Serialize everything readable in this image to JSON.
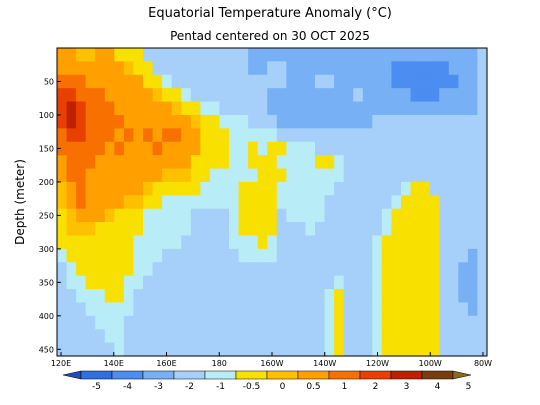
{
  "chart_data": {
    "type": "heatmap",
    "title": "Equatorial Temperature Anomaly (°C)",
    "subtitle": "Pentad centered on 30 OCT 2025",
    "ylabel": "Depth (meter)",
    "xlabel": "",
    "x_ticks": [
      "120E",
      "140E",
      "160E",
      "180",
      "160W",
      "140W",
      "120W",
      "100W",
      "80W"
    ],
    "y_ticks": [
      "50",
      "100",
      "150",
      "200",
      "250",
      "300",
      "350",
      "400",
      "450"
    ],
    "xlim": [
      120,
      280
    ],
    "ylim": [
      0,
      460
    ],
    "colorbar": {
      "levels": [
        "-5",
        "-4",
        "-3",
        "-2",
        "-1",
        "-0.5",
        "0",
        "0.5",
        "1",
        "2",
        "3",
        "4",
        "5"
      ],
      "colors": [
        "#1f4fbf",
        "#2f6fe0",
        "#4b8df0",
        "#78b0f5",
        "#a6d0fa",
        "#b8ecf6",
        "#f8e000",
        "#ffc000",
        "#ffa000",
        "#f87000",
        "#e84000",
        "#c02000",
        "#7a3d10",
        "#8b6a1a"
      ]
    },
    "grid": [
      [
        8,
        8,
        7,
        7,
        8,
        8,
        6,
        6,
        6,
        4,
        4,
        4,
        4,
        4,
        4,
        4,
        4,
        4,
        4,
        4,
        3,
        3,
        3,
        3,
        3,
        3,
        3,
        3,
        3,
        3,
        3,
        3,
        3,
        3,
        3,
        3,
        3,
        3,
        3,
        3,
        3,
        3,
        3,
        3,
        4
      ],
      [
        8,
        8,
        8,
        8,
        8,
        8,
        8,
        7,
        6,
        6,
        4,
        4,
        4,
        4,
        4,
        4,
        4,
        4,
        4,
        4,
        3,
        3,
        4,
        4,
        3,
        3,
        3,
        3,
        3,
        3,
        3,
        3,
        3,
        3,
        3,
        2,
        2,
        2,
        2,
        2,
        2,
        3,
        3,
        3,
        4
      ],
      [
        9,
        9,
        9,
        8,
        8,
        8,
        8,
        8,
        8,
        6,
        6,
        5,
        4,
        4,
        4,
        4,
        4,
        4,
        4,
        4,
        4,
        4,
        4,
        4,
        3,
        3,
        3,
        4,
        4,
        3,
        3,
        3,
        3,
        3,
        3,
        2,
        2,
        2,
        2,
        2,
        2,
        2,
        3,
        3,
        4
      ],
      [
        10,
        10,
        9,
        9,
        9,
        8,
        8,
        8,
        8,
        8,
        7,
        6,
        6,
        5,
        4,
        4,
        4,
        4,
        4,
        4,
        4,
        4,
        3,
        3,
        3,
        3,
        3,
        3,
        3,
        3,
        3,
        4,
        3,
        3,
        3,
        3,
        3,
        2,
        2,
        2,
        3,
        3,
        3,
        3,
        4
      ],
      [
        10,
        11,
        10,
        9,
        9,
        9,
        8,
        8,
        8,
        8,
        8,
        8,
        7,
        6,
        6,
        5,
        5,
        4,
        4,
        4,
        4,
        4,
        3,
        3,
        3,
        3,
        3,
        3,
        3,
        3,
        3,
        3,
        3,
        3,
        3,
        3,
        3,
        3,
        3,
        3,
        3,
        3,
        3,
        3,
        4
      ],
      [
        10,
        11,
        10,
        9,
        9,
        9,
        9,
        8,
        8,
        8,
        8,
        8,
        8,
        8,
        7,
        6,
        6,
        5,
        5,
        5,
        4,
        4,
        4,
        3,
        3,
        3,
        3,
        3,
        3,
        3,
        3,
        3,
        3,
        4,
        4,
        4,
        4,
        4,
        4,
        4,
        4,
        4,
        4,
        4,
        4
      ],
      [
        9,
        10,
        10,
        9,
        9,
        9,
        8,
        9,
        8,
        9,
        8,
        9,
        9,
        8,
        8,
        6,
        6,
        6,
        5,
        5,
        5,
        5,
        5,
        4,
        4,
        4,
        4,
        4,
        4,
        4,
        4,
        4,
        4,
        4,
        4,
        4,
        4,
        4,
        4,
        4,
        4,
        4,
        4,
        4,
        4
      ],
      [
        9,
        9,
        9,
        9,
        9,
        8,
        9,
        8,
        8,
        8,
        9,
        8,
        8,
        8,
        8,
        6,
        6,
        6,
        5,
        5,
        6,
        5,
        6,
        6,
        5,
        5,
        5,
        4,
        4,
        4,
        4,
        4,
        4,
        4,
        4,
        4,
        4,
        4,
        4,
        4,
        4,
        4,
        4,
        4,
        4
      ],
      [
        8,
        9,
        9,
        9,
        8,
        8,
        8,
        8,
        8,
        8,
        8,
        8,
        8,
        8,
        6,
        6,
        6,
        6,
        5,
        5,
        6,
        6,
        6,
        5,
        5,
        5,
        5,
        6,
        6,
        5,
        4,
        4,
        4,
        4,
        4,
        4,
        4,
        4,
        4,
        4,
        4,
        4,
        4,
        4,
        4
      ],
      [
        8,
        9,
        9,
        8,
        8,
        8,
        8,
        8,
        8,
        8,
        8,
        7,
        7,
        7,
        6,
        6,
        5,
        5,
        5,
        5,
        5,
        6,
        6,
        6,
        5,
        5,
        5,
        5,
        5,
        5,
        4,
        4,
        4,
        4,
        4,
        4,
        4,
        4,
        4,
        4,
        4,
        4,
        4,
        4,
        4
      ],
      [
        7,
        8,
        9,
        8,
        8,
        8,
        8,
        8,
        8,
        7,
        6,
        6,
        6,
        6,
        6,
        5,
        5,
        5,
        5,
        6,
        6,
        6,
        6,
        5,
        5,
        5,
        5,
        5,
        5,
        4,
        4,
        4,
        4,
        4,
        4,
        4,
        5,
        6,
        6,
        4,
        4,
        4,
        4,
        4,
        4
      ],
      [
        7,
        8,
        9,
        8,
        8,
        8,
        8,
        7,
        7,
        6,
        6,
        5,
        5,
        5,
        5,
        5,
        5,
        5,
        5,
        6,
        6,
        6,
        6,
        5,
        5,
        5,
        5,
        5,
        4,
        4,
        4,
        4,
        4,
        4,
        4,
        5,
        6,
        6,
        6,
        6,
        4,
        4,
        4,
        4,
        4
      ],
      [
        6,
        7,
        8,
        8,
        8,
        7,
        6,
        6,
        6,
        5,
        5,
        5,
        5,
        5,
        4,
        4,
        4,
        4,
        5,
        6,
        6,
        6,
        6,
        4,
        5,
        5,
        5,
        5,
        4,
        4,
        4,
        4,
        4,
        4,
        5,
        6,
        6,
        6,
        6,
        6,
        4,
        4,
        4,
        4,
        4
      ],
      [
        6,
        7,
        7,
        7,
        6,
        6,
        6,
        6,
        6,
        5,
        5,
        5,
        5,
        5,
        4,
        4,
        4,
        4,
        5,
        6,
        6,
        6,
        6,
        4,
        4,
        4,
        5,
        4,
        4,
        4,
        4,
        4,
        4,
        4,
        5,
        6,
        6,
        6,
        6,
        6,
        4,
        4,
        4,
        4,
        4
      ],
      [
        6,
        6,
        6,
        6,
        6,
        6,
        6,
        6,
        5,
        5,
        5,
        5,
        5,
        4,
        4,
        4,
        4,
        4,
        5,
        5,
        5,
        6,
        5,
        4,
        4,
        4,
        4,
        4,
        4,
        4,
        4,
        4,
        4,
        5,
        6,
        6,
        6,
        6,
        6,
        6,
        4,
        4,
        4,
        4,
        4
      ],
      [
        5,
        6,
        6,
        6,
        6,
        6,
        6,
        6,
        5,
        5,
        5,
        4,
        4,
        4,
        4,
        4,
        4,
        4,
        4,
        5,
        5,
        5,
        5,
        4,
        4,
        4,
        4,
        4,
        4,
        4,
        4,
        4,
        4,
        5,
        6,
        6,
        6,
        6,
        6,
        6,
        4,
        4,
        4,
        3,
        4
      ],
      [
        4,
        5,
        6,
        6,
        6,
        6,
        6,
        6,
        5,
        5,
        4,
        4,
        4,
        4,
        4,
        4,
        4,
        4,
        4,
        4,
        4,
        4,
        4,
        4,
        4,
        4,
        4,
        4,
        4,
        4,
        4,
        4,
        4,
        5,
        6,
        6,
        6,
        6,
        6,
        6,
        4,
        4,
        3,
        3,
        4
      ],
      [
        4,
        5,
        5,
        6,
        6,
        6,
        6,
        5,
        5,
        4,
        4,
        4,
        4,
        4,
        4,
        4,
        4,
        4,
        4,
        4,
        4,
        4,
        4,
        4,
        4,
        4,
        4,
        4,
        4,
        5,
        4,
        4,
        4,
        5,
        6,
        6,
        6,
        6,
        6,
        6,
        4,
        4,
        3,
        3,
        4
      ],
      [
        4,
        4,
        5,
        5,
        5,
        6,
        6,
        5,
        4,
        4,
        4,
        4,
        4,
        4,
        4,
        4,
        4,
        4,
        4,
        4,
        4,
        4,
        4,
        4,
        4,
        4,
        4,
        4,
        5,
        6,
        4,
        4,
        4,
        5,
        6,
        6,
        6,
        6,
        6,
        6,
        4,
        4,
        3,
        3,
        4
      ],
      [
        4,
        4,
        4,
        5,
        5,
        5,
        5,
        5,
        4,
        4,
        4,
        4,
        4,
        4,
        4,
        4,
        4,
        4,
        4,
        4,
        4,
        4,
        4,
        4,
        4,
        4,
        4,
        4,
        5,
        6,
        4,
        4,
        4,
        5,
        6,
        6,
        6,
        6,
        6,
        6,
        4,
        4,
        4,
        3,
        4
      ],
      [
        4,
        4,
        4,
        4,
        5,
        5,
        5,
        4,
        4,
        4,
        4,
        4,
        4,
        4,
        4,
        4,
        4,
        4,
        4,
        4,
        4,
        4,
        4,
        4,
        4,
        4,
        4,
        4,
        5,
        6,
        4,
        4,
        4,
        5,
        6,
        6,
        6,
        6,
        6,
        6,
        4,
        4,
        4,
        4,
        4
      ],
      [
        4,
        4,
        4,
        4,
        4,
        5,
        5,
        4,
        4,
        4,
        4,
        4,
        4,
        4,
        4,
        4,
        4,
        4,
        4,
        4,
        4,
        4,
        4,
        4,
        4,
        4,
        4,
        4,
        5,
        6,
        4,
        4,
        4,
        5,
        6,
        6,
        6,
        6,
        6,
        6,
        4,
        4,
        4,
        4,
        4
      ],
      [
        4,
        4,
        4,
        4,
        4,
        4,
        5,
        4,
        4,
        4,
        4,
        4,
        4,
        4,
        4,
        4,
        4,
        4,
        4,
        4,
        4,
        4,
        4,
        4,
        4,
        4,
        4,
        4,
        5,
        6,
        4,
        4,
        4,
        5,
        6,
        6,
        6,
        6,
        6,
        6,
        4,
        4,
        4,
        4,
        4
      ]
    ]
  }
}
